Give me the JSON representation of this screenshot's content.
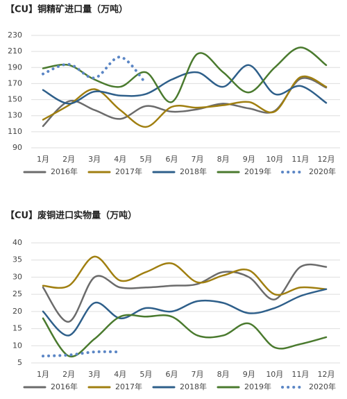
{
  "chart_data": [
    {
      "type": "line",
      "title": "【CU】铜精矿进口量（万吨）",
      "categories": [
        "1月",
        "2月",
        "3月",
        "4月",
        "5月",
        "6月",
        "7月",
        "8月",
        "9月",
        "10月",
        "11月",
        "12月"
      ],
      "ylim": [
        90,
        230
      ],
      "yticks": [
        90,
        110,
        130,
        150,
        170,
        190,
        210,
        230
      ],
      "grid": true,
      "series": [
        {
          "name": "2016年",
          "color": "#6b6b6b",
          "values": [
            117,
            148,
            137,
            126,
            142,
            135,
            138,
            145,
            139,
            136,
            176,
            165
          ]
        },
        {
          "name": "2017年",
          "color": "#a07f10",
          "values": [
            125,
            143,
            163,
            137,
            116,
            141,
            140,
            143,
            147,
            135,
            178,
            166
          ]
        },
        {
          "name": "2018年",
          "color": "#2e5f8a",
          "values": [
            162,
            145,
            160,
            155,
            157,
            175,
            184,
            166,
            193,
            157,
            167,
            146
          ]
        },
        {
          "name": "2019年",
          "color": "#4a7a2e",
          "values": [
            189,
            193,
            175,
            166,
            184,
            147,
            207,
            184,
            159,
            190,
            215,
            193
          ]
        },
        {
          "name": "2020年",
          "color": "#5b86c5",
          "dotted": true,
          "values": [
            182,
            194,
            177,
            203,
            170,
            null,
            null,
            null,
            null,
            null,
            null,
            null
          ]
        }
      ]
    },
    {
      "type": "line",
      "title": "【CU】废铜进口实物量（万吨）",
      "categories": [
        "1月",
        "2月",
        "3月",
        "4月",
        "5月",
        "6月",
        "7月",
        "8月",
        "9月",
        "10月",
        "11月",
        "12月"
      ],
      "ylim": [
        5,
        40
      ],
      "yticks": [
        5,
        10,
        15,
        20,
        25,
        30,
        35,
        40
      ],
      "grid": true,
      "series": [
        {
          "name": "2016年",
          "color": "#6b6b6b",
          "values": [
            27,
            17,
            30,
            27,
            27,
            27.5,
            28,
            31.5,
            30,
            23.5,
            33,
            33
          ]
        },
        {
          "name": "2017年",
          "color": "#a07f10",
          "values": [
            27.5,
            27.5,
            36,
            29,
            31.5,
            34,
            28.5,
            30.5,
            32,
            25,
            27,
            26.5
          ]
        },
        {
          "name": "2018年",
          "color": "#2e5f8a",
          "values": [
            20,
            13,
            22.5,
            18,
            21,
            20,
            23,
            22.5,
            19.5,
            21,
            24.5,
            26.5
          ]
        },
        {
          "name": "2019年",
          "color": "#4a7a2e",
          "values": [
            18,
            7,
            12,
            18.5,
            18.5,
            18.5,
            13,
            13,
            16.5,
            9.5,
            10.5,
            12.5
          ]
        },
        {
          "name": "2020年",
          "color": "#5b86c5",
          "dotted": true,
          "values": [
            7,
            7.3,
            8.2,
            8.2,
            null,
            null,
            null,
            null,
            null,
            null,
            null,
            null
          ]
        }
      ]
    }
  ]
}
